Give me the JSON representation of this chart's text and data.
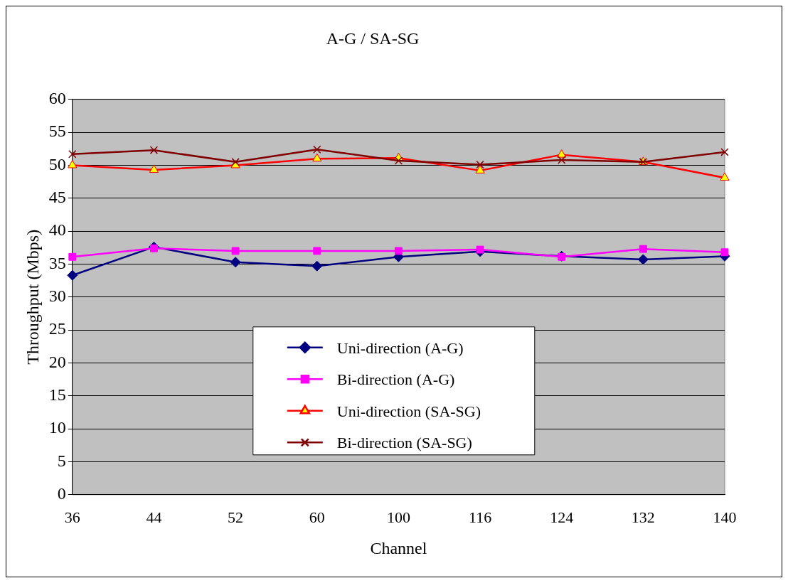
{
  "chart_data": {
    "type": "line",
    "title": "A-G / SA-SG",
    "xlabel": "Channel",
    "ylabel": "Throughput (Mbps)",
    "categories": [
      "36",
      "44",
      "52",
      "60",
      "100",
      "116",
      "124",
      "132",
      "140"
    ],
    "series": [
      {
        "name": "Uni-direction (A-G)",
        "color": "#000080",
        "marker": "diamond",
        "values": [
          33.3,
          37.6,
          35.3,
          34.7,
          36.1,
          36.9,
          36.2,
          35.7,
          36.2
        ]
      },
      {
        "name": "Bi-direction (A-G)",
        "color": "#ff00ff",
        "marker": "square",
        "values": [
          36.1,
          37.4,
          37.0,
          37.0,
          37.0,
          37.2,
          36.1,
          37.3,
          36.8
        ]
      },
      {
        "name": "Uni-direction (SA-SG)",
        "color": "#ff0000",
        "marker": "triangle",
        "values": [
          50.0,
          49.3,
          50.0,
          51.0,
          51.1,
          49.2,
          51.6,
          50.5,
          48.1
        ]
      },
      {
        "name": "Bi-direction (SA-SG)",
        "color": "#800000",
        "marker": "cross",
        "values": [
          51.7,
          52.3,
          50.5,
          52.4,
          50.7,
          50.1,
          50.8,
          50.5,
          52.0
        ]
      }
    ],
    "ylim": [
      0,
      60
    ],
    "yticks": [
      0,
      5,
      10,
      15,
      20,
      25,
      30,
      35,
      40,
      45,
      50,
      55,
      60
    ],
    "grid": "y",
    "legend": "bottom",
    "line_style": "solid"
  }
}
